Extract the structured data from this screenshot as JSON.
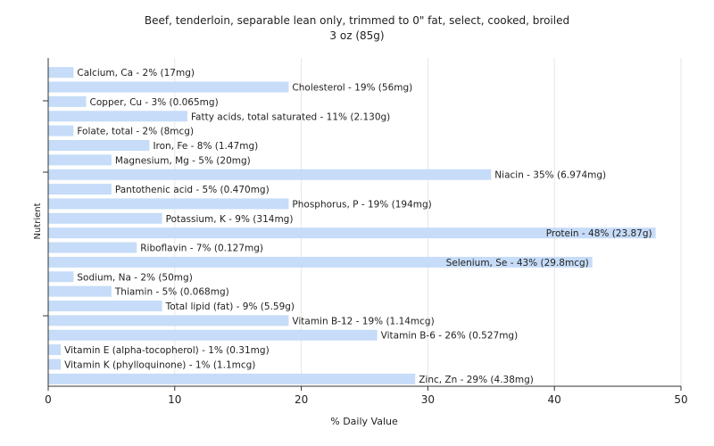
{
  "chart_data": {
    "type": "bar",
    "orientation": "horizontal",
    "title": "Beef, tenderloin, separable lean only, trimmed to 0\" fat, select, cooked, broiled",
    "subtitle": "3 oz (85g)",
    "xlabel": "% Daily Value",
    "ylabel": "Nutrient",
    "xlim": [
      0,
      50
    ],
    "xticks": [
      0,
      10,
      20,
      30,
      40,
      50
    ],
    "grid": true,
    "bar_color": "#c6dcf8",
    "bars": [
      {
        "label": "Calcium, Ca - 2% (17mg)",
        "value": 2
      },
      {
        "label": "Cholesterol - 19% (56mg)",
        "value": 19
      },
      {
        "label": "Copper, Cu - 3% (0.065mg)",
        "value": 3
      },
      {
        "label": "Fatty acids, total saturated - 11% (2.130g)",
        "value": 11
      },
      {
        "label": "Folate, total - 2% (8mcg)",
        "value": 2
      },
      {
        "label": "Iron, Fe - 8% (1.47mg)",
        "value": 8
      },
      {
        "label": "Magnesium, Mg - 5% (20mg)",
        "value": 5
      },
      {
        "label": "Niacin - 35% (6.974mg)",
        "value": 35
      },
      {
        "label": "Pantothenic acid - 5% (0.470mg)",
        "value": 5
      },
      {
        "label": "Phosphorus, P - 19% (194mg)",
        "value": 19
      },
      {
        "label": "Potassium, K - 9% (314mg)",
        "value": 9
      },
      {
        "label": "Protein - 48% (23.87g)",
        "value": 48
      },
      {
        "label": "Riboflavin - 7% (0.127mg)",
        "value": 7
      },
      {
        "label": "Selenium, Se - 43% (29.8mcg)",
        "value": 43
      },
      {
        "label": "Sodium, Na - 2% (50mg)",
        "value": 2
      },
      {
        "label": "Thiamin - 5% (0.068mg)",
        "value": 5
      },
      {
        "label": "Total lipid (fat) - 9% (5.59g)",
        "value": 9
      },
      {
        "label": "Vitamin B-12 - 19% (1.14mcg)",
        "value": 19
      },
      {
        "label": "Vitamin B-6 - 26% (0.527mg)",
        "value": 26
      },
      {
        "label": "Vitamin E (alpha-tocopherol) - 1% (0.31mg)",
        "value": 1
      },
      {
        "label": "Vitamin K (phylloquinone) - 1% (1.1mcg)",
        "value": 1
      },
      {
        "label": "Zinc, Zn - 29% (4.38mg)",
        "value": 29
      }
    ]
  }
}
